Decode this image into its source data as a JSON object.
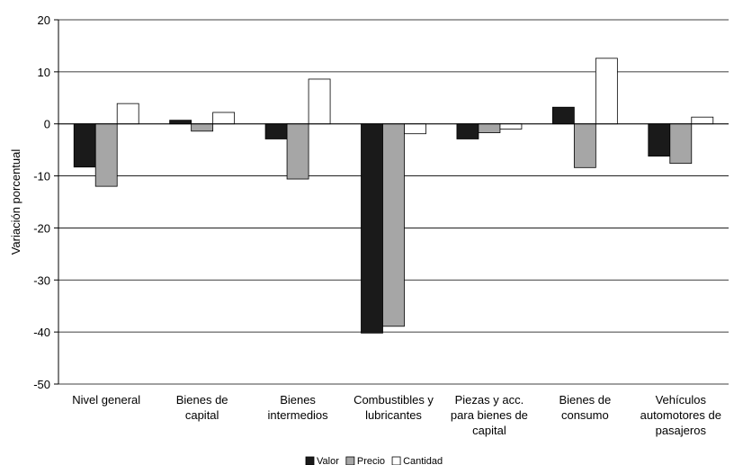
{
  "chart_data": {
    "type": "bar",
    "title": "",
    "xlabel": "",
    "ylabel": "Variación porcentual",
    "ylim": [
      -50,
      20
    ],
    "yticks": [
      20,
      10,
      0,
      -10,
      -20,
      -30,
      -40,
      -50
    ],
    "grid": true,
    "legend_position": "bottom",
    "categories": [
      [
        "Nivel general"
      ],
      [
        "Bienes de",
        "capital"
      ],
      [
        "Bienes",
        "intermedios"
      ],
      [
        "Combustibles y",
        "lubricantes"
      ],
      [
        "Piezas y acc.",
        "para bienes de",
        "capital"
      ],
      [
        "Bienes de",
        "consumo"
      ],
      [
        "Vehículos",
        "automotores de",
        "pasajeros"
      ]
    ],
    "series": [
      {
        "name": "Valor",
        "color": "#1a1a1a",
        "values": [
          -8.3,
          0.7,
          -2.9,
          -40.2,
          -2.9,
          3.2,
          -6.2
        ]
      },
      {
        "name": "Precio",
        "color": "#a6a6a6",
        "values": [
          -12.0,
          -1.4,
          -10.6,
          -38.9,
          -1.7,
          -8.4,
          -7.6
        ]
      },
      {
        "name": "Cantidad",
        "color": "#ffffff",
        "values": [
          3.9,
          2.2,
          8.6,
          -1.9,
          -1.0,
          12.6,
          1.3
        ]
      }
    ]
  }
}
